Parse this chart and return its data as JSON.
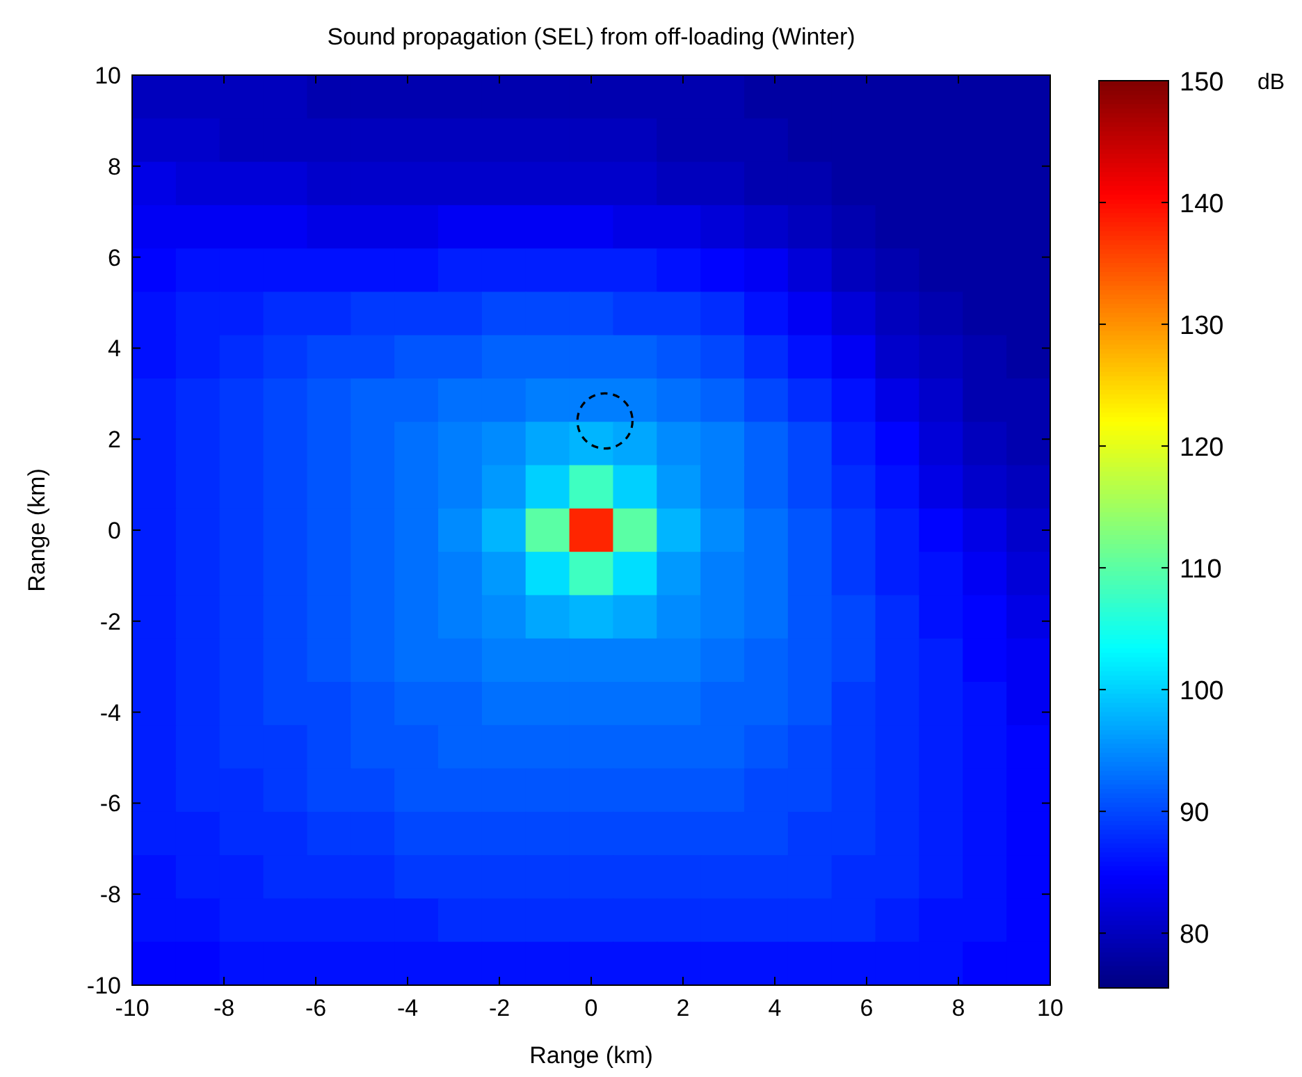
{
  "chart_data": {
    "type": "heatmap",
    "title": "Sound propagation (SEL) from off-loading (Winter)",
    "xlabel": "Range (km)",
    "ylabel": "Range (km)",
    "clabel": "dB",
    "xlim": [
      -10,
      10
    ],
    "ylim": [
      -10,
      10
    ],
    "xticks": [
      -10,
      -8,
      -6,
      -4,
      -2,
      0,
      2,
      4,
      6,
      8,
      10
    ],
    "yticks": [
      -10,
      -8,
      -6,
      -4,
      -2,
      0,
      2,
      4,
      6,
      8,
      10
    ],
    "clim": [
      75.5,
      150
    ],
    "cticks": [
      80,
      90,
      100,
      110,
      120,
      130,
      140,
      150
    ],
    "cells": [
      [
        80,
        80,
        80,
        80,
        79,
        79,
        79,
        79,
        79,
        79,
        79,
        79,
        79,
        79,
        78,
        78,
        78,
        78,
        78,
        78,
        78
      ],
      [
        81,
        81,
        80,
        80,
        80,
        80,
        80,
        80,
        80,
        80,
        80,
        80,
        79,
        79,
        79,
        78,
        78,
        78,
        78,
        78,
        78
      ],
      [
        83,
        82,
        82,
        82,
        81,
        81,
        81,
        81,
        81,
        81,
        81,
        81,
        80,
        80,
        79,
        79,
        78,
        78,
        78,
        78,
        78
      ],
      [
        84,
        84,
        84,
        84,
        83,
        83,
        83,
        84,
        84,
        84,
        84,
        83,
        83,
        82,
        81,
        80,
        79,
        78,
        78,
        78,
        78
      ],
      [
        85,
        86,
        86,
        86,
        86,
        86,
        86,
        87,
        87,
        87,
        87,
        87,
        86,
        85,
        84,
        82,
        80,
        79,
        78,
        78,
        78
      ],
      [
        86,
        87,
        87,
        88,
        88,
        89,
        89,
        89,
        90,
        90,
        90,
        89,
        89,
        88,
        86,
        84,
        82,
        80,
        79,
        78,
        78
      ],
      [
        86,
        87,
        88,
        89,
        90,
        90,
        91,
        91,
        92,
        92,
        92,
        92,
        91,
        90,
        88,
        86,
        84,
        81,
        80,
        79,
        78
      ],
      [
        87,
        88,
        89,
        90,
        91,
        92,
        92,
        93,
        93,
        94,
        94,
        94,
        93,
        92,
        90,
        88,
        86,
        83,
        81,
        79,
        79
      ],
      [
        87,
        88,
        89,
        90,
        91,
        92,
        93,
        94,
        95,
        97,
        98,
        97,
        95,
        94,
        92,
        90,
        87,
        85,
        82,
        80,
        79
      ],
      [
        87,
        88,
        89,
        90,
        91,
        92,
        93,
        94,
        96,
        100,
        108,
        100,
        96,
        94,
        92,
        90,
        88,
        86,
        83,
        81,
        80
      ],
      [
        87,
        88,
        89,
        90,
        91,
        92,
        93,
        95,
        98,
        110,
        138,
        110,
        98,
        95,
        93,
        91,
        89,
        87,
        85,
        83,
        81
      ],
      [
        87,
        88,
        89,
        90,
        91,
        92,
        93,
        94,
        96,
        101,
        108,
        101,
        96,
        94,
        93,
        91,
        89,
        87,
        86,
        84,
        82
      ],
      [
        87,
        88,
        89,
        90,
        91,
        92,
        93,
        94,
        95,
        97,
        98,
        97,
        95,
        94,
        93,
        91,
        90,
        88,
        86,
        85,
        83
      ],
      [
        87,
        88,
        89,
        90,
        91,
        92,
        93,
        93,
        94,
        94,
        94,
        94,
        94,
        93,
        92,
        91,
        90,
        88,
        87,
        85,
        84
      ],
      [
        87,
        88,
        89,
        90,
        90,
        91,
        92,
        92,
        93,
        93,
        93,
        93,
        93,
        92,
        92,
        91,
        89,
        88,
        87,
        86,
        84
      ],
      [
        87,
        88,
        89,
        89,
        90,
        91,
        91,
        92,
        92,
        92,
        92,
        92,
        92,
        92,
        91,
        90,
        89,
        88,
        87,
        86,
        85
      ],
      [
        87,
        88,
        88,
        89,
        90,
        90,
        91,
        91,
        91,
        91,
        91,
        91,
        91,
        91,
        90,
        90,
        89,
        88,
        87,
        86,
        85
      ],
      [
        87,
        87,
        88,
        88,
        89,
        89,
        90,
        90,
        90,
        90,
        90,
        90,
        90,
        90,
        90,
        89,
        89,
        88,
        87,
        86,
        85
      ],
      [
        86,
        87,
        87,
        88,
        88,
        88,
        89,
        89,
        89,
        89,
        89,
        89,
        89,
        89,
        89,
        89,
        88,
        88,
        87,
        86,
        85
      ],
      [
        86,
        86,
        87,
        87,
        87,
        87,
        87,
        88,
        88,
        88,
        88,
        88,
        88,
        88,
        88,
        88,
        88,
        87,
        86,
        86,
        85
      ],
      [
        85,
        85,
        86,
        86,
        86,
        86,
        86,
        86,
        86,
        86,
        86,
        86,
        86,
        86,
        86,
        86,
        86,
        86,
        86,
        85,
        85
      ]
    ]
  }
}
